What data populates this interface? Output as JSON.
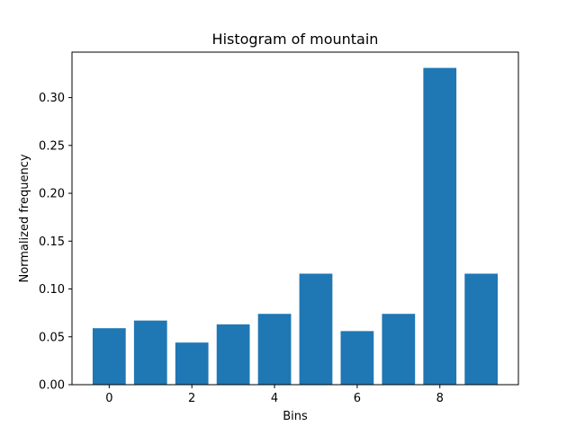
{
  "chart_data": {
    "type": "bar",
    "title": "Histogram of mountain",
    "xlabel": "Bins",
    "ylabel": "Normalized frequency",
    "categories": [
      0,
      1,
      2,
      3,
      4,
      5,
      6,
      7,
      8,
      9
    ],
    "values": [
      0.059,
      0.067,
      0.044,
      0.063,
      0.074,
      0.116,
      0.056,
      0.074,
      0.331,
      0.116
    ],
    "xlim": [
      -0.9,
      9.9
    ],
    "ylim": [
      0,
      0.3475
    ],
    "xticks": [
      0,
      2,
      4,
      6,
      8
    ],
    "xtick_labels": [
      "0",
      "2",
      "4",
      "6",
      "8"
    ],
    "yticks": [
      0.0,
      0.05,
      0.1,
      0.15,
      0.2,
      0.25,
      0.3
    ],
    "ytick_labels": [
      "0.00",
      "0.05",
      "0.10",
      "0.15",
      "0.20",
      "0.25",
      "0.30"
    ],
    "bar_width": 0.8,
    "bar_color": "#1f77b4",
    "grid": false,
    "legend": "none"
  }
}
